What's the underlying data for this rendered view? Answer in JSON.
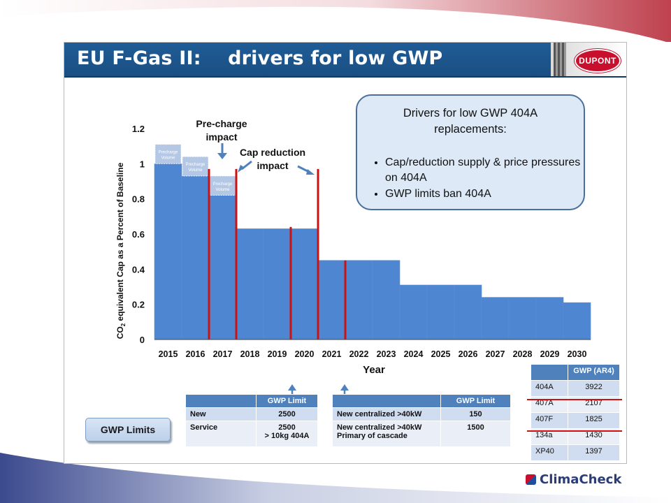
{
  "slide": {
    "title": "EU F-Gas II:    drivers for low GWP",
    "logo_text": "DUPONT"
  },
  "drivers_box": {
    "title_line1": "Drivers for low GWP 404A",
    "title_line2": "replacements:",
    "items": [
      "Cap/reduction supply & price pressures on 404A",
      "GWP limits ban 404A"
    ]
  },
  "annotations": {
    "pre_charge_line1": "Pre-charge",
    "pre_charge_line2": "impact",
    "cap_reduction_line1": "Cap reduction",
    "cap_reduction_line2": "impact",
    "precharge_volume": [
      "Precharge Volume",
      "Precharge Volume",
      "Precharge Volume"
    ]
  },
  "chart_data": {
    "type": "bar",
    "title": "",
    "xlabel": "Year",
    "ylabel": "CO2 equivalent Cap as a Percent of Baseline",
    "ylim": [
      0,
      1.2
    ],
    "yticks": [
      "0",
      "0.2",
      "0.4",
      "0.6",
      "0.8",
      "1",
      "1.2"
    ],
    "categories": [
      "2015",
      "2016",
      "2017",
      "2018",
      "2019",
      "2020",
      "2021",
      "2022",
      "2023",
      "2024",
      "2025",
      "2026",
      "2027",
      "2028",
      "2029",
      "2030"
    ],
    "values": [
      1.0,
      0.93,
      0.82,
      0.63,
      0.63,
      0.63,
      0.45,
      0.45,
      0.45,
      0.31,
      0.31,
      0.31,
      0.24,
      0.24,
      0.24,
      0.21
    ],
    "precharge_tops": [
      1.11,
      1.04,
      0.93
    ],
    "vertical_markers_year": [
      2016.5,
      2017.5,
      2019.5,
      2020.5,
      2021.5
    ],
    "colors": {
      "bar": "#4f86d1",
      "precharge": "#b4c8e6",
      "marker": "#cc1111",
      "annotation": "#4f81bd"
    }
  },
  "tables": {
    "gwp_button": "GWP Limits",
    "limit_table_1": {
      "header": [
        "",
        "GWP Limit"
      ],
      "rows": [
        [
          "New",
          "2500"
        ],
        [
          "Service",
          "2500\n> 10kg 404A"
        ]
      ]
    },
    "limit_table_2": {
      "header": [
        "",
        "GWP Limit"
      ],
      "rows": [
        [
          "New centralized >40kW",
          "150"
        ],
        [
          "New centralized >40kW\nPrimary of cascade",
          "1500"
        ]
      ]
    },
    "gwp_ar4": {
      "header": [
        "",
        "GWP (AR4)"
      ],
      "rows": [
        [
          "404A",
          "3922"
        ],
        [
          "407A",
          "2107"
        ],
        [
          "407F",
          "1825"
        ],
        [
          "134a",
          "1430"
        ],
        [
          "XP40",
          "1397"
        ]
      ]
    }
  },
  "footer": {
    "brand": "ClimaCheck"
  }
}
